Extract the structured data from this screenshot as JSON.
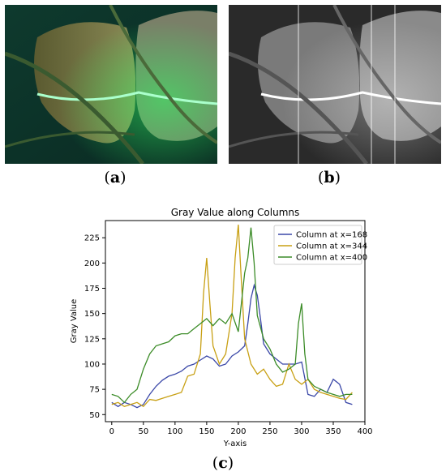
{
  "captions": {
    "a": "a",
    "b": "b",
    "c": "c"
  },
  "colors": {
    "series_168": "#3b48a8",
    "series_344": "#c8a014",
    "series_400": "#3c8c28"
  },
  "chart_data": {
    "type": "line",
    "title": "Gray Value along Columns",
    "xlabel": "Y-axis",
    "ylabel": "Gray Value",
    "xlim": [
      -10,
      400
    ],
    "ylim": [
      43,
      242
    ],
    "xticks": [
      0,
      50,
      100,
      150,
      200,
      250,
      300,
      350,
      400
    ],
    "yticks": [
      50,
      75,
      100,
      125,
      150,
      175,
      200,
      225
    ],
    "grid": false,
    "legend_position": "top-right",
    "series": [
      {
        "name": "Column at x=168",
        "x": [
          0,
          10,
          20,
          30,
          40,
          50,
          60,
          70,
          80,
          90,
          100,
          110,
          120,
          130,
          140,
          150,
          160,
          170,
          180,
          190,
          200,
          210,
          215,
          220,
          225,
          230,
          235,
          240,
          250,
          260,
          270,
          280,
          290,
          300,
          310,
          320,
          330,
          340,
          350,
          360,
          370,
          380
        ],
        "values": [
          62,
          58,
          62,
          60,
          57,
          60,
          70,
          78,
          84,
          88,
          90,
          93,
          98,
          100,
          104,
          108,
          105,
          98,
          100,
          108,
          112,
          118,
          140,
          165,
          178,
          168,
          145,
          120,
          110,
          105,
          100,
          100,
          100,
          102,
          70,
          68,
          75,
          72,
          85,
          80,
          62,
          60
        ]
      },
      {
        "name": "Column at x=344",
        "x": [
          0,
          10,
          20,
          30,
          40,
          50,
          60,
          70,
          80,
          90,
          100,
          110,
          120,
          130,
          140,
          145,
          150,
          155,
          160,
          170,
          180,
          190,
          195,
          200,
          205,
          210,
          220,
          230,
          240,
          250,
          260,
          270,
          280,
          290,
          300,
          310,
          320,
          330,
          340,
          350,
          360,
          370,
          380
        ],
        "values": [
          60,
          62,
          58,
          60,
          62,
          58,
          65,
          64,
          66,
          68,
          70,
          72,
          88,
          90,
          110,
          170,
          205,
          160,
          118,
          100,
          110,
          150,
          205,
          238,
          180,
          125,
          100,
          90,
          95,
          85,
          78,
          80,
          100,
          85,
          80,
          85,
          75,
          72,
          70,
          68,
          66,
          65,
          72
        ]
      },
      {
        "name": "Column at x=400",
        "x": [
          0,
          10,
          20,
          30,
          40,
          50,
          60,
          70,
          80,
          90,
          100,
          110,
          120,
          130,
          140,
          150,
          160,
          170,
          180,
          190,
          200,
          210,
          215,
          220,
          225,
          230,
          240,
          250,
          260,
          270,
          280,
          290,
          295,
          300,
          305,
          310,
          320,
          330,
          340,
          350,
          360,
          370,
          380
        ],
        "values": [
          70,
          68,
          62,
          70,
          75,
          95,
          110,
          118,
          120,
          122,
          128,
          130,
          130,
          135,
          140,
          145,
          138,
          145,
          140,
          150,
          132,
          190,
          205,
          235,
          200,
          148,
          125,
          115,
          100,
          92,
          95,
          100,
          140,
          160,
          110,
          85,
          78,
          75,
          72,
          70,
          68,
          70,
          70
        ]
      }
    ]
  }
}
